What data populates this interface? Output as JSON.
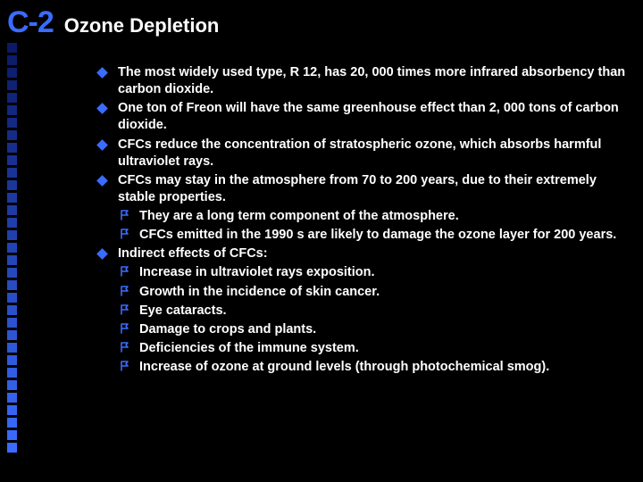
{
  "slide": {
    "code": "C-2",
    "title": "Ozone Depletion",
    "code_color": "#3a6cff"
  },
  "colors": {
    "background": "#000000",
    "text": "#ffffff",
    "diamond": "#3a6cff",
    "flag": "#3a6cff"
  },
  "side_gradient": {
    "count": 33,
    "start": "#0a1a66",
    "end": "#3a6cff"
  },
  "bullets": [
    {
      "text": "The most widely used type, R 12, has 20, 000 times more infrared absorbency than carbon dioxide."
    },
    {
      "text": "One ton of Freon will have the same greenhouse effect than 2, 000 tons of carbon dioxide."
    },
    {
      "text": "CFCs reduce the concentration of stratospheric ozone, which absorbs harmful ultraviolet rays."
    },
    {
      "text": "CFCs may stay in the atmosphere from 70 to 200 years, due to their extremely stable properties.",
      "sub": [
        {
          "text": "They are a long term component of the atmosphere."
        },
        {
          "text": "CFCs emitted in the 1990 s are likely to damage the ozone layer for 200 years."
        }
      ]
    },
    {
      "text": "Indirect effects of CFCs:",
      "sub": [
        {
          "text": "Increase in ultraviolet rays exposition."
        },
        {
          "text": "Growth in the incidence of skin cancer."
        },
        {
          "text": "Eye cataracts."
        },
        {
          "text": "Damage to crops and plants."
        },
        {
          "text": "Deficiencies of the immune system."
        },
        {
          "text": "Increase of ozone at ground levels (through photochemical smog)."
        }
      ]
    }
  ]
}
